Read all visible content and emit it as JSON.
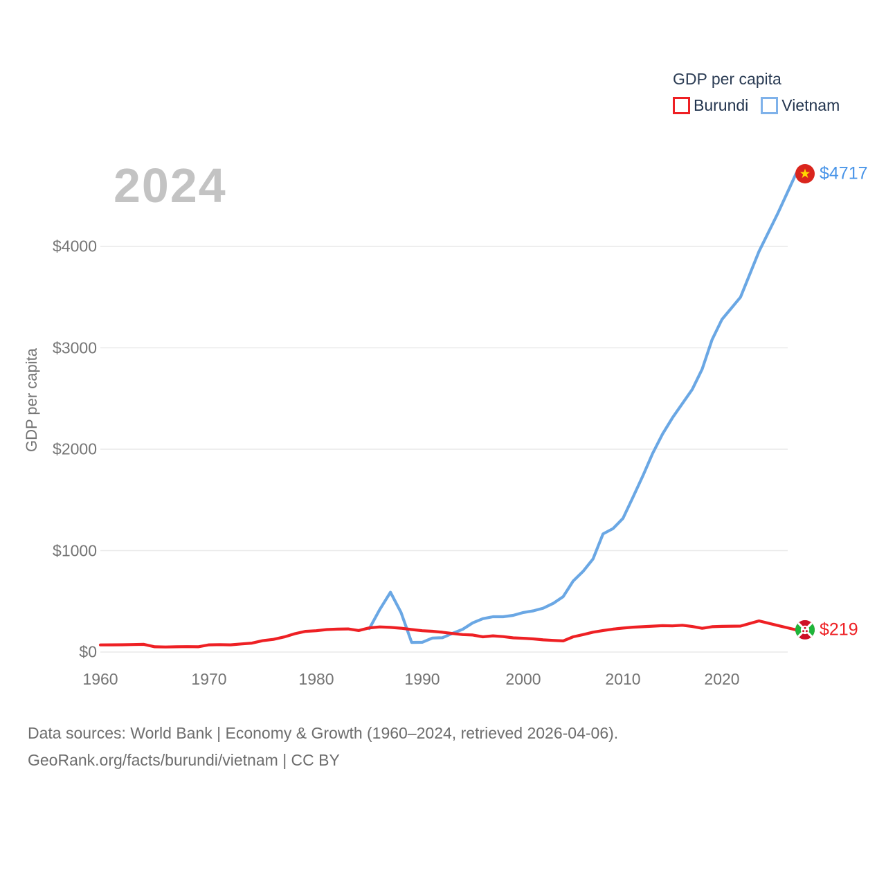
{
  "footer": {
    "line1": "Data sources: World Bank | Economy & Growth (1960–2024, retrieved 2026-04-06).",
    "line2": "GeoRank.org/facts/burundi/vietnam | CC BY"
  },
  "chart_data": {
    "type": "line",
    "title": "GDP per capita",
    "ylabel": "GDP per capita",
    "watermark_year": "2024",
    "xlim": [
      1960,
      2024
    ],
    "ylim": [
      0,
      4800
    ],
    "grid": true,
    "legend_position": "top-right",
    "x_ticks": [
      {
        "label": "1960",
        "year": 1960
      },
      {
        "label": "1970",
        "year": 1970
      },
      {
        "label": "1980",
        "year": 1980
      },
      {
        "label": "1990",
        "year": 1990
      },
      {
        "label": "2000",
        "year": 2000
      },
      {
        "label": "2010",
        "year": 2010
      },
      {
        "label": "2020",
        "year": 2020
      }
    ],
    "y_ticks": [
      {
        "label": "$0",
        "value": 0
      },
      {
        "label": "$1000",
        "value": 1000
      },
      {
        "label": "$2000",
        "value": 2000
      },
      {
        "label": "$3000",
        "value": 3000
      },
      {
        "label": "$4000",
        "value": 4000
      }
    ],
    "series": [
      {
        "name": "Burundi",
        "color": "#ee2024",
        "label_color": "#ee2024",
        "flag": "burundi",
        "start_year": 1960,
        "end_year": 2024,
        "end_value": 219,
        "end_label": "$219",
        "values": [
          70,
          71,
          72,
          74,
          76,
          52,
          50,
          52,
          53,
          52,
          71,
          73,
          71,
          80,
          88,
          112,
          125,
          149,
          181,
          204,
          210,
          222,
          226,
          228,
          212,
          238,
          248,
          243,
          235,
          222,
          210,
          205,
          195,
          183,
          172,
          168,
          150,
          160,
          152,
          140,
          136,
          130,
          120,
          115,
          110,
          150,
          172,
          196,
          212,
          226,
          236,
          245,
          250,
          255,
          260,
          258,
          264,
          252,
          234,
          250,
          253,
          256,
          307,
          262,
          219
        ]
      },
      {
        "name": "Vietnam",
        "color": "#6aa7e4",
        "label_color": "#4a95e8",
        "flag": "vietnam",
        "start_year": 1985,
        "end_year": 2024,
        "end_value": 4717,
        "end_label": "$4717",
        "values": [
          231,
          421,
          590,
          390,
          95,
          96,
          138,
          141,
          185,
          224,
          288,
          329,
          348,
          348,
          362,
          390,
          406,
          433,
          480,
          546,
          700,
          796,
          919,
          1165,
          1217,
          1318,
          1525,
          1735,
          1960,
          2150,
          2310,
          2450,
          2590,
          2790,
          3080,
          3280,
          3500,
          3950,
          4320,
          4717
        ]
      }
    ]
  }
}
